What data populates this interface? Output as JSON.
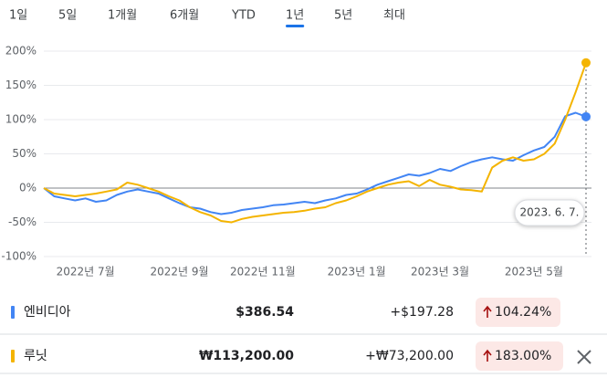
{
  "tabs": [
    "1일",
    "5일",
    "1개월",
    "6개월",
    "YTD",
    "1년",
    "5년",
    "최대"
  ],
  "selected_tab": "1년",
  "chart_data": {
    "type": "line",
    "categories": [
      null,
      null,
      null,
      null,
      "2022년 7월",
      null,
      null,
      null,
      null,
      null,
      null,
      null,
      null,
      "2022년 9월",
      null,
      null,
      null,
      null,
      null,
      null,
      null,
      "2022년 11월",
      null,
      null,
      null,
      null,
      null,
      null,
      null,
      null,
      "2023년 1월",
      null,
      null,
      null,
      null,
      null,
      null,
      null,
      "2023년 3월",
      null,
      null,
      null,
      null,
      null,
      null,
      null,
      null,
      "2023년 5월",
      null,
      null,
      null,
      null,
      null
    ],
    "ylim": [
      -100,
      200
    ],
    "yticks": [
      {
        "value": -100,
        "label": "-100%"
      },
      {
        "value": -50,
        "label": "-50%"
      },
      {
        "value": 0,
        "label": "0%"
      },
      {
        "value": 50,
        "label": "50%"
      },
      {
        "value": 100,
        "label": "100%"
      },
      {
        "value": 150,
        "label": "150%"
      },
      {
        "value": 200,
        "label": "200%"
      }
    ],
    "grid": true,
    "tooltip": "2023. 6. 7.",
    "series": [
      {
        "name": "엔비디아",
        "color": "#4285f4",
        "price": "$386.54",
        "change": "+$197.28",
        "change_percent": "104.24%",
        "values": [
          0,
          -12,
          -15,
          -18,
          -15,
          -20,
          -18,
          -10,
          -5,
          -2,
          -5,
          -8,
          -15,
          -22,
          -28,
          -30,
          -35,
          -38,
          -36,
          -32,
          -30,
          -28,
          -25,
          -24,
          -22,
          -20,
          -22,
          -18,
          -15,
          -10,
          -8,
          -2,
          5,
          10,
          15,
          20,
          18,
          22,
          28,
          25,
          32,
          38,
          42,
          45,
          42,
          40,
          48,
          55,
          60,
          75,
          105,
          110,
          104.24
        ]
      },
      {
        "name": "루닛",
        "color": "#f4b400",
        "price": "₩113,200.00",
        "change": "+₩73,200.00",
        "change_percent": "183.00%",
        "values": [
          0,
          -8,
          -10,
          -12,
          -10,
          -8,
          -5,
          -2,
          8,
          5,
          0,
          -5,
          -12,
          -18,
          -28,
          -35,
          -40,
          -48,
          -50,
          -45,
          -42,
          -40,
          -38,
          -36,
          -35,
          -33,
          -30,
          -28,
          -22,
          -18,
          -12,
          -5,
          0,
          5,
          8,
          10,
          3,
          12,
          5,
          2,
          -2,
          -3,
          -5,
          30,
          40,
          45,
          40,
          42,
          50,
          65,
          100,
          140,
          183
        ]
      }
    ]
  }
}
